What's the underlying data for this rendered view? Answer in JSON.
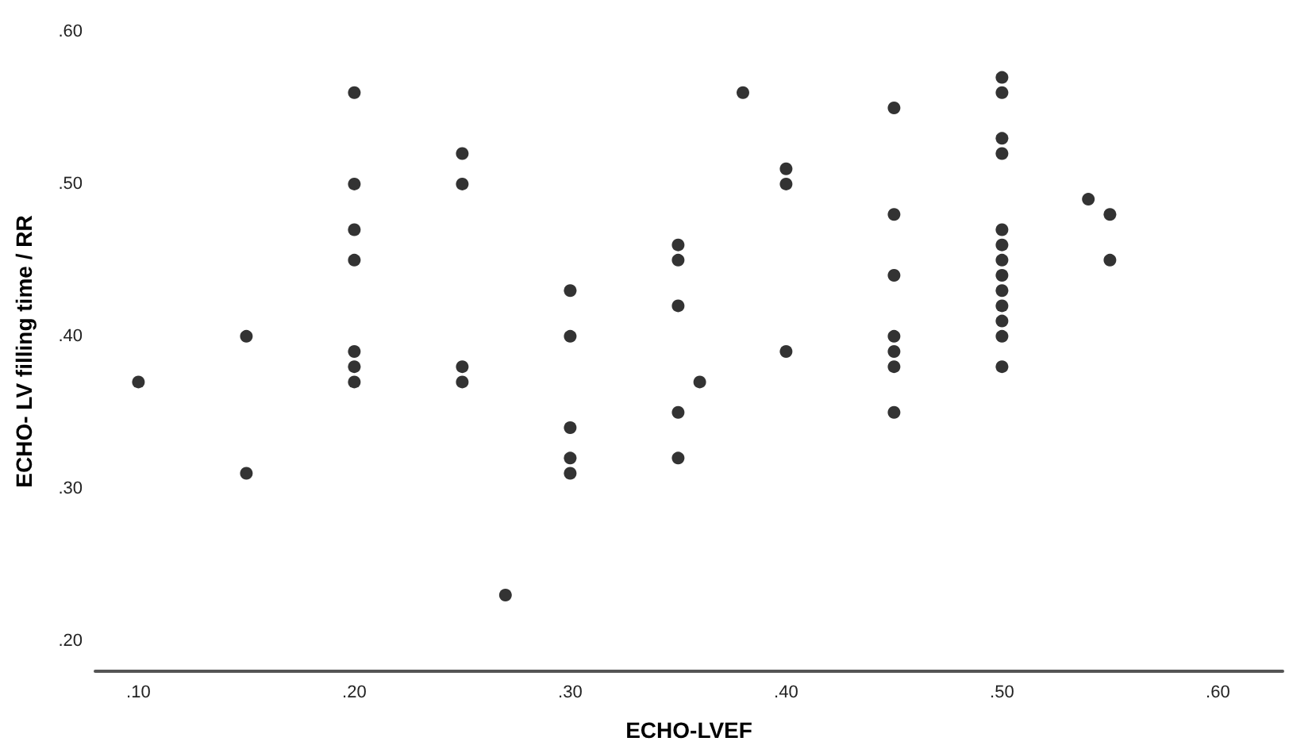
{
  "chart_data": {
    "type": "scatter",
    "xlabel": "ECHO-LVEF",
    "ylabel": "ECHO- LV filling time / RR",
    "marker": "circle",
    "grid": false,
    "xlim": [
      0.08,
      0.63
    ],
    "ylim": [
      0.18,
      0.6
    ],
    "xticks": [
      {
        "value": 0.1,
        "label": ".10"
      },
      {
        "value": 0.2,
        "label": ".20"
      },
      {
        "value": 0.3,
        "label": ".30"
      },
      {
        "value": 0.4,
        "label": ".40"
      },
      {
        "value": 0.5,
        "label": ".50"
      },
      {
        "value": 0.6,
        "label": ".60"
      }
    ],
    "yticks": [
      {
        "value": 0.2,
        "label": ".20"
      },
      {
        "value": 0.3,
        "label": ".30"
      },
      {
        "value": 0.4,
        "label": ".40"
      },
      {
        "value": 0.5,
        "label": ".50"
      },
      {
        "value": 0.6,
        "label": ".60"
      }
    ],
    "series": [
      {
        "color": "#000000",
        "x": [
          0.1,
          0.15,
          0.15,
          0.2,
          0.2,
          0.2,
          0.2,
          0.2,
          0.2,
          0.2,
          0.25,
          0.25,
          0.25,
          0.25,
          0.27,
          0.3,
          0.3,
          0.3,
          0.3,
          0.3,
          0.35,
          0.35,
          0.35,
          0.35,
          0.35,
          0.36,
          0.38,
          0.4,
          0.4,
          0.4,
          0.45,
          0.45,
          0.45,
          0.45,
          0.45,
          0.45,
          0.45,
          0.5,
          0.5,
          0.5,
          0.5,
          0.5,
          0.5,
          0.5,
          0.5,
          0.5,
          0.5,
          0.5,
          0.5,
          0.5,
          0.54,
          0.55,
          0.55
        ],
        "values": [
          0.37,
          0.4,
          0.31,
          0.56,
          0.5,
          0.47,
          0.45,
          0.39,
          0.38,
          0.37,
          0.52,
          0.5,
          0.38,
          0.37,
          0.23,
          0.43,
          0.4,
          0.34,
          0.32,
          0.31,
          0.46,
          0.45,
          0.42,
          0.35,
          0.32,
          0.37,
          0.56,
          0.51,
          0.5,
          0.39,
          0.55,
          0.48,
          0.44,
          0.4,
          0.39,
          0.38,
          0.35,
          0.57,
          0.56,
          0.53,
          0.52,
          0.47,
          0.46,
          0.45,
          0.44,
          0.43,
          0.42,
          0.41,
          0.4,
          0.38,
          0.49,
          0.48,
          0.45
        ]
      }
    ]
  }
}
